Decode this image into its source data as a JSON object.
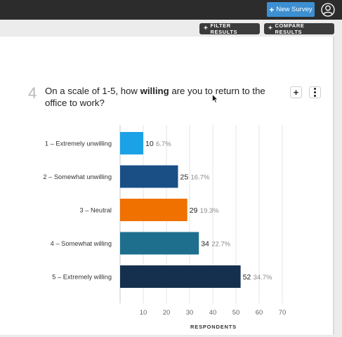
{
  "header": {
    "new_survey_label": "New Survey",
    "new_survey_icon": "plus",
    "accent": "#3d8fd1"
  },
  "toolbar": {
    "filter_label": "FILTER RESULTS",
    "compare_label": "COMPARE RESULTS"
  },
  "question": {
    "number": "4",
    "text_before": "On a scale of 1-5, how ",
    "text_bold": "willing",
    "text_after": " are you to return to the office to work?"
  },
  "chart_data": {
    "type": "bar",
    "orientation": "horizontal",
    "categories": [
      "1 – Extremely unwilling",
      "2 – Somewhat unwilling",
      "3 – Neutral",
      "4 – Somewhat willing",
      "5 – Extremely willing"
    ],
    "values": [
      10,
      25,
      29,
      34,
      52
    ],
    "percent_labels": [
      "6.7%",
      "16.7%",
      "19.3%",
      "22.7%",
      "34.7%"
    ],
    "colors": [
      "#1aa1e6",
      "#1a4f86",
      "#f07000",
      "#1e6f8e",
      "#15304f"
    ],
    "xlabel": "RESPONDENTS",
    "xticks": [
      10,
      20,
      30,
      40,
      50,
      60,
      70
    ],
    "xlim": [
      0,
      80
    ],
    "grid": true
  }
}
